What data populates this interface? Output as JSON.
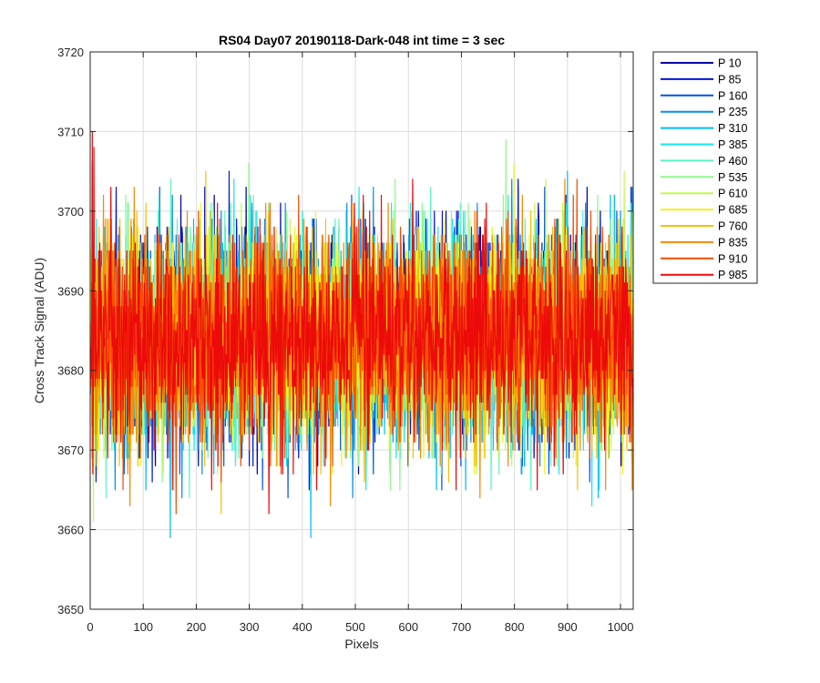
{
  "chart_data": {
    "type": "line",
    "title": "RS04 Day07 20190118-Dark-048 int time = 3 sec",
    "xlabel": "Pixels",
    "ylabel": "Cross Track Signal (ADU)",
    "xlim": [
      0,
      1024
    ],
    "ylim": [
      3650,
      3720
    ],
    "xticks": [
      0,
      100,
      200,
      300,
      400,
      500,
      600,
      700,
      800,
      900,
      1000
    ],
    "yticks": [
      3650,
      3660,
      3670,
      3680,
      3690,
      3700,
      3710,
      3720
    ],
    "grid": true,
    "legend_position": "outside-top-right",
    "x_range": [
      1,
      1024
    ],
    "noise_model": {
      "mean": 3684,
      "std": 6.5,
      "min": 3655,
      "max": 3712
    },
    "series": [
      {
        "name": "P 10",
        "color": "#0000a8"
      },
      {
        "name": "P 85",
        "color": "#0014d8"
      },
      {
        "name": "P 160",
        "color": "#0054e8"
      },
      {
        "name": "P 235",
        "color": "#0090f0"
      },
      {
        "name": "P 310",
        "color": "#00bef4"
      },
      {
        "name": "P 385",
        "color": "#12eaea"
      },
      {
        "name": "P 460",
        "color": "#5af5c4"
      },
      {
        "name": "P 535",
        "color": "#8ef88e"
      },
      {
        "name": "P 610",
        "color": "#c4f850"
      },
      {
        "name": "P 685",
        "color": "#f4f414"
      },
      {
        "name": "P 760",
        "color": "#f8c000"
      },
      {
        "name": "P 835",
        "color": "#f88a00"
      },
      {
        "name": "P 910",
        "color": "#f84c00"
      },
      {
        "name": "P 985",
        "color": "#ec0a0a"
      }
    ]
  }
}
